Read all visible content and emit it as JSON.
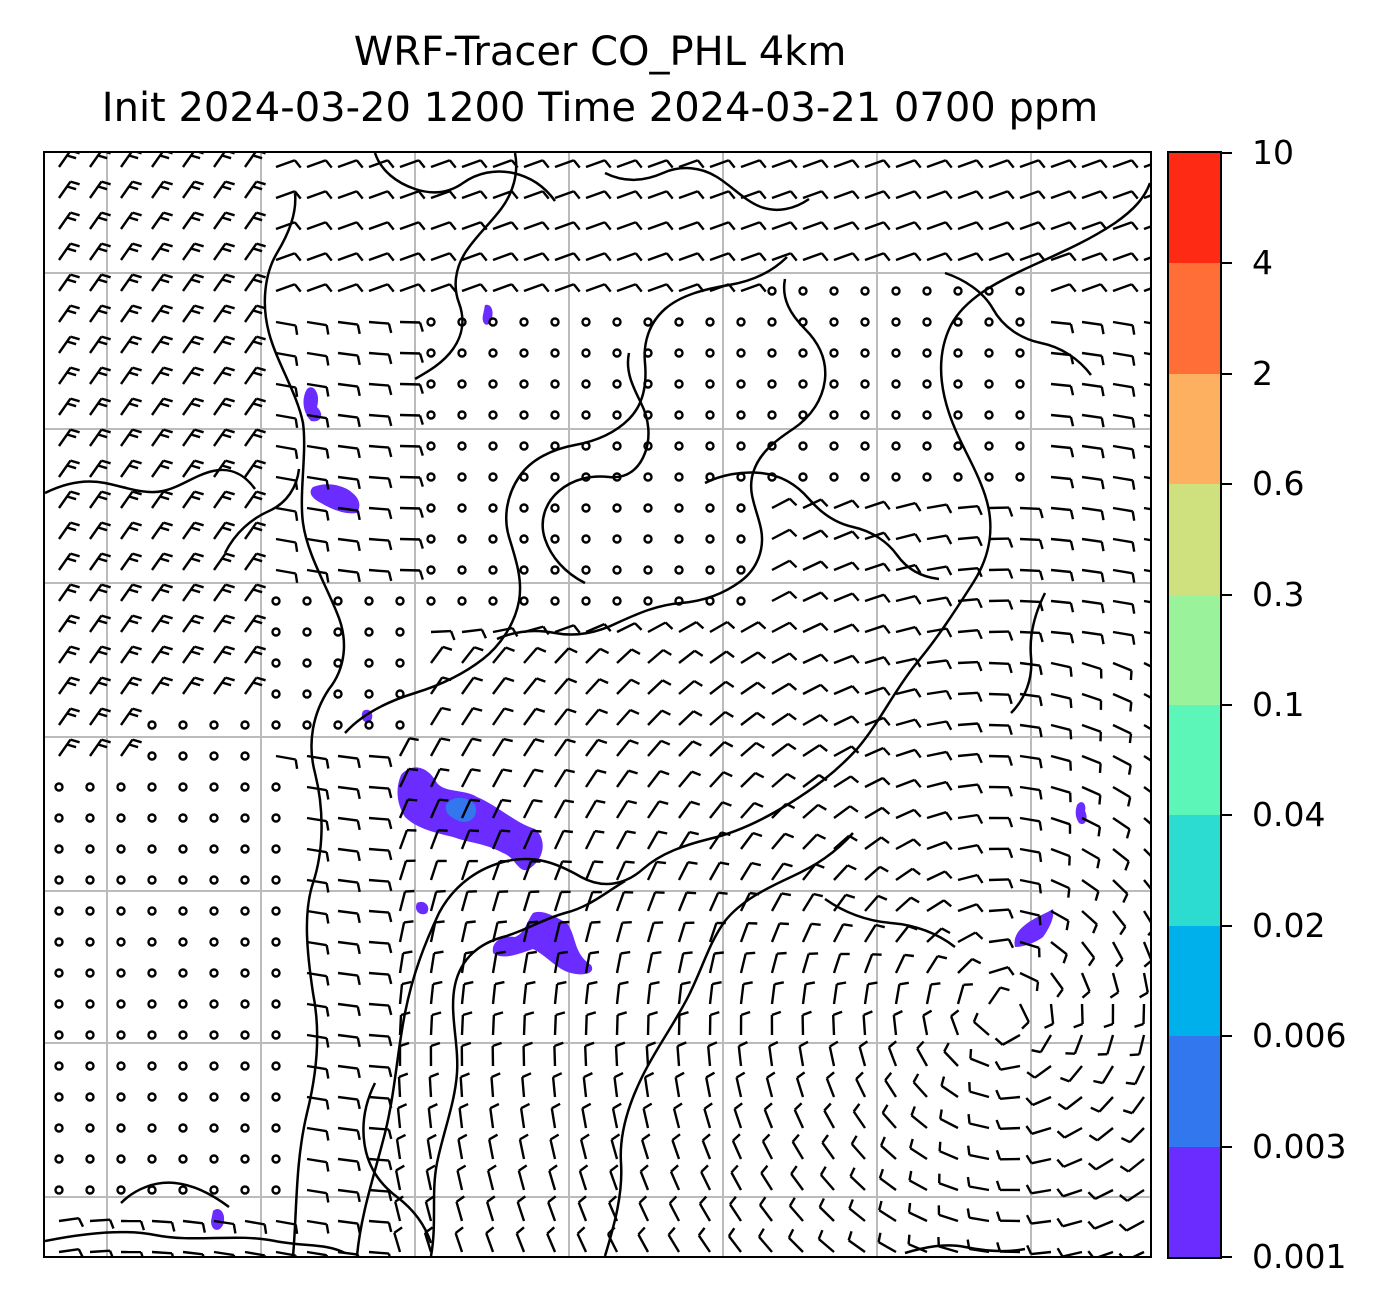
{
  "title": {
    "line1": "WRF-Tracer CO_PHL 4km",
    "line2": "Init 2024-03-20 1200 Time 2024-03-21 0700 ppm"
  },
  "colorbar": {
    "levels": [
      "0.001",
      "0.003",
      "0.006",
      "0.02",
      "0.04",
      "0.1",
      "0.3",
      "0.6",
      "2",
      "4",
      "10"
    ],
    "colors": [
      "#6a2cff",
      "#3377ee",
      "#00b0ea",
      "#2cdcd0",
      "#5cf7b8",
      "#9af29a",
      "#cfe07f",
      "#fdb060",
      "#ff6e37",
      "#ff2a14"
    ]
  },
  "map": {
    "background": "#ffffff",
    "gridline_color": "#bbbbbb",
    "coastline_color": "#000000",
    "wind_barb_color": "#000000",
    "tracer_plume_color": "#6a2cff",
    "tracer_plume_core_color": "#3377ee"
  }
}
